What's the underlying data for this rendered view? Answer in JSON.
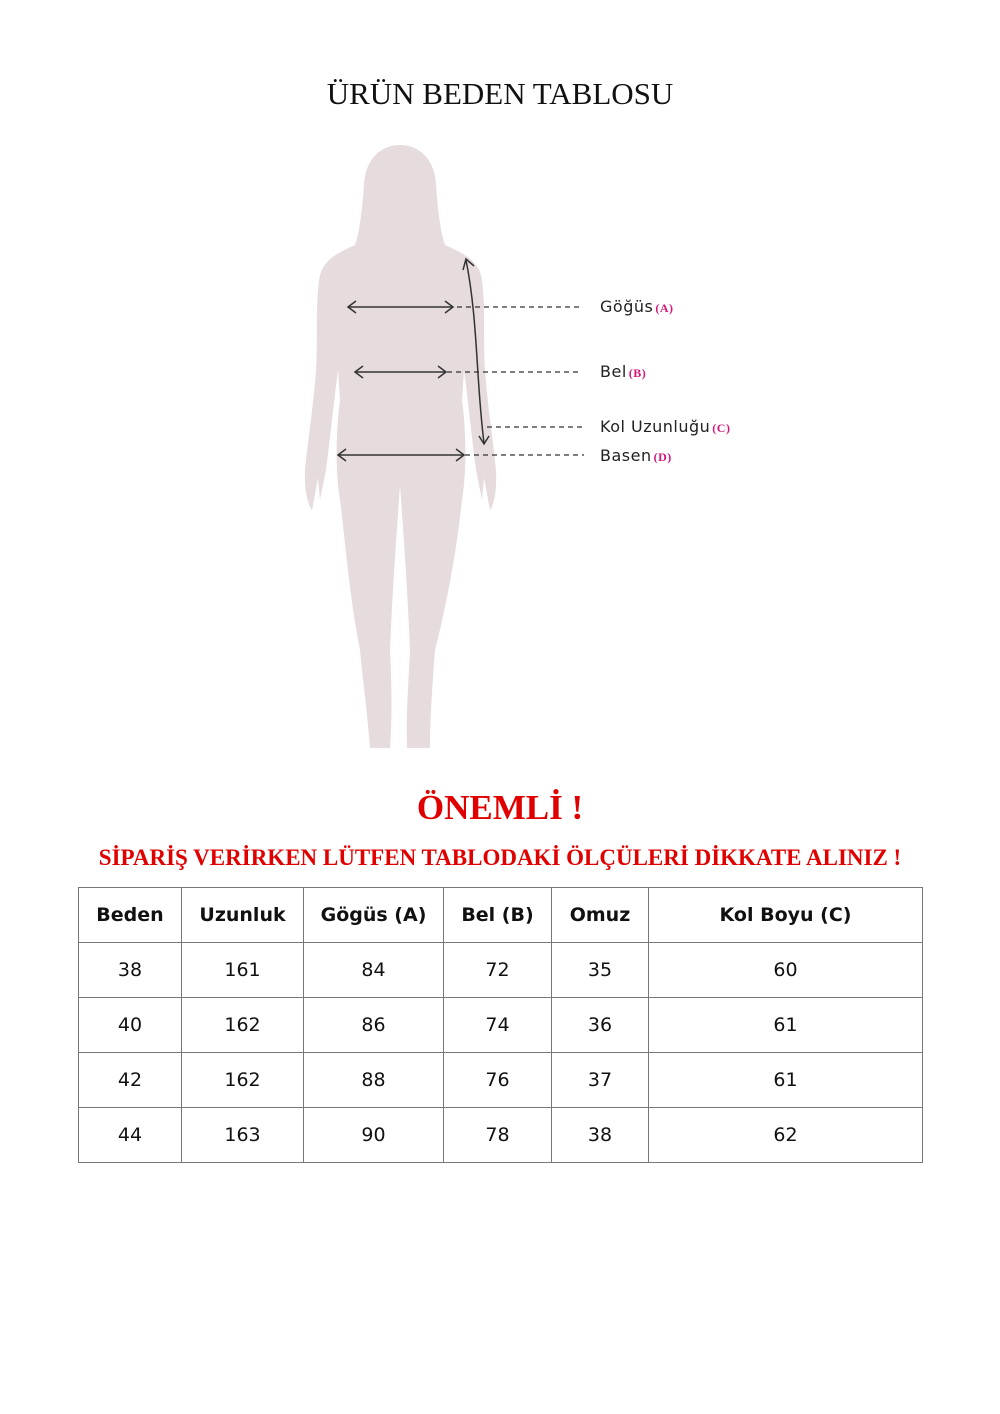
{
  "title": "ÜRÜN BEDEN TABLOSU",
  "diagram": {
    "labels": [
      {
        "name": "Göğüs",
        "code": "(A)"
      },
      {
        "name": "Bel",
        "code": "(B)"
      },
      {
        "name": "Kol Uzunluğu",
        "code": "(C)"
      },
      {
        "name": "Basen",
        "code": "(D)"
      }
    ],
    "colors": {
      "silhouette": "#e6dcdd",
      "code": "#d6157a"
    }
  },
  "notice": {
    "heading": "ÖNEMLİ !",
    "text": "SİPARİŞ VERİRKEN LÜTFEN TABLODAKİ ÖLÇÜLERİ DİKKATE ALINIZ !",
    "color": "#e00000"
  },
  "table": {
    "headers": [
      "Beden",
      "Uzunluk",
      "Gögüs (A)",
      "Bel (B)",
      "Omuz",
      "Kol Boyu (C)"
    ],
    "rows": [
      [
        "38",
        "161",
        "84",
        "72",
        "35",
        "60"
      ],
      [
        "40",
        "162",
        "86",
        "74",
        "36",
        "61"
      ],
      [
        "42",
        "162",
        "88",
        "76",
        "37",
        "61"
      ],
      [
        "44",
        "163",
        "90",
        "78",
        "38",
        "62"
      ]
    ]
  }
}
